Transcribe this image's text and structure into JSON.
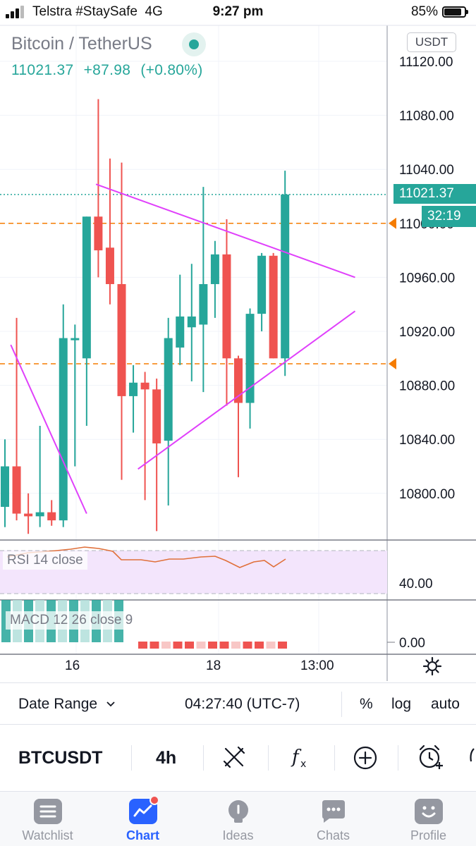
{
  "status_bar": {
    "carrier": "Telstra #StaySafe",
    "network": "4G",
    "time": "9:27 pm",
    "battery": "85%"
  },
  "header": {
    "symbol_title": "Bitcoin / TetherUS",
    "last_price": "11021.37",
    "change": "+87.98",
    "change_pct": "(+0.80%)",
    "quote_currency": "USDT"
  },
  "price_axis": {
    "ticks": [
      "11120.00",
      "11080.00",
      "11040.00",
      "11000.00",
      "10960.00",
      "10920.00",
      "10880.00",
      "10840.00",
      "10800.00"
    ],
    "last_price_label": "11021.37",
    "countdown": "32:19"
  },
  "rsi": {
    "label": "RSI 14 close",
    "axis_tick": "40.00"
  },
  "macd": {
    "label": "MACD 12 26 close 9",
    "axis_tick": "0.00"
  },
  "time_axis": {
    "ticks": [
      "16",
      "18",
      "13:00"
    ]
  },
  "toolbar": {
    "date_range": "Date Range",
    "clock": "04:27:40 (UTC-7)",
    "percent": "%",
    "log": "log",
    "auto": "auto"
  },
  "tools": {
    "symbol": "BTCUSDT",
    "interval": "4h"
  },
  "tabs": [
    {
      "label": "Watchlist",
      "icon": "list-icon"
    },
    {
      "label": "Chart",
      "icon": "chart-icon"
    },
    {
      "label": "Ideas",
      "icon": "lightbulb-icon"
    },
    {
      "label": "Chats",
      "icon": "chat-bubble-icon"
    },
    {
      "label": "Profile",
      "icon": "smiley-icon"
    }
  ],
  "colors": {
    "up": "#26a69a",
    "down": "#ef5350",
    "trendline": "#e040fb",
    "alert_line": "#f57c00",
    "accent": "#2962ff"
  },
  "chart_data": {
    "type": "candlestick",
    "interval": "4h",
    "ylim": [
      10770,
      11140
    ],
    "price_ticks": [
      11120,
      11080,
      11040,
      11000,
      10960,
      10920,
      10880,
      10840,
      10800
    ],
    "last_price": 11021.37,
    "alert_levels": [
      11000,
      10896
    ],
    "candles": [
      {
        "o": 10790,
        "h": 10840,
        "l": 10775,
        "c": 10820
      },
      {
        "o": 10820,
        "h": 10930,
        "l": 10780,
        "c": 10785
      },
      {
        "o": 10785,
        "h": 10800,
        "l": 10770,
        "c": 10783
      },
      {
        "o": 10783,
        "h": 10850,
        "l": 10775,
        "c": 10786
      },
      {
        "o": 10786,
        "h": 10795,
        "l": 10776,
        "c": 10780
      },
      {
        "o": 10780,
        "h": 10940,
        "l": 10775,
        "c": 10915
      },
      {
        "o": 10915,
        "h": 10925,
        "l": 10820,
        "c": 10915
      },
      {
        "o": 10900,
        "h": 11005,
        "l": 10850,
        "c": 11005
      },
      {
        "o": 11005,
        "h": 11092,
        "l": 10960,
        "c": 10980
      },
      {
        "o": 10982,
        "h": 11048,
        "l": 10940,
        "c": 10955
      },
      {
        "o": 10955,
        "h": 11045,
        "l": 10810,
        "c": 10872
      },
      {
        "o": 10872,
        "h": 10895,
        "l": 10845,
        "c": 10882
      },
      {
        "o": 10882,
        "h": 10890,
        "l": 10795,
        "c": 10877
      },
      {
        "o": 10877,
        "h": 10885,
        "l": 10772,
        "c": 10837
      },
      {
        "o": 10839,
        "h": 10930,
        "l": 10791,
        "c": 10915
      },
      {
        "o": 10908,
        "h": 10962,
        "l": 10895,
        "c": 10931
      },
      {
        "o": 10923,
        "h": 10970,
        "l": 10883,
        "c": 10931
      },
      {
        "o": 10925,
        "h": 11027,
        "l": 10875,
        "c": 10955
      },
      {
        "o": 10955,
        "h": 10987,
        "l": 10930,
        "c": 10977
      },
      {
        "o": 10977,
        "h": 11003,
        "l": 10865,
        "c": 10900
      },
      {
        "o": 10900,
        "h": 10902,
        "l": 10812,
        "c": 10867
      },
      {
        "o": 10867,
        "h": 10937,
        "l": 10848,
        "c": 10933
      },
      {
        "o": 10933,
        "h": 10978,
        "l": 10920,
        "c": 10976
      },
      {
        "o": 10976,
        "h": 10978,
        "l": 10900,
        "c": 10900
      },
      {
        "o": 10900,
        "h": 11039,
        "l": 10887,
        "c": 11021.37
      }
    ],
    "trendlines": [
      {
        "from": [
          0.5,
          10910
        ],
        "to": [
          7,
          10785
        ]
      },
      {
        "from": [
          7.8,
          11029
        ],
        "to": [
          30,
          10960
        ]
      },
      {
        "from": [
          11.4,
          10818
        ],
        "to": [
          30,
          10935
        ]
      }
    ]
  }
}
